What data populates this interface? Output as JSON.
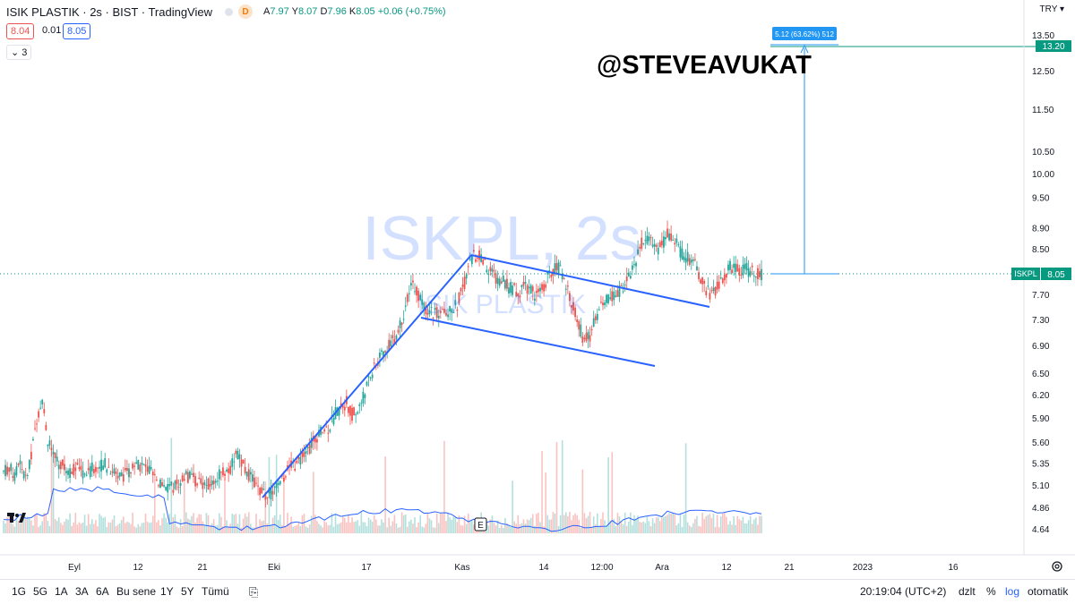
{
  "header": {
    "title": "ISIK PLASTIK · 2s · BIST · TradingView",
    "ohlc": [
      {
        "label": "A",
        "value": "7.97"
      },
      {
        "label": "Y",
        "value": "8.07"
      },
      {
        "label": "D",
        "value": "7.96"
      },
      {
        "label": "K",
        "value": "8.05"
      }
    ],
    "change": "+0.06 (+0.75%)",
    "bid": "8.04",
    "spread": "0.01",
    "ask": "8.05",
    "indicator_toggle": "3",
    "d_badge": "D"
  },
  "currency": "TRY",
  "watermark": {
    "symbol": "ISKPL, 2s",
    "name": "ISIK PLASTIK"
  },
  "annotation": "@STEVEAVUKAT",
  "measure_label": "5.12 (63.62%) 512",
  "target_label": "13.20",
  "last_price": {
    "symbol": "ISKPL",
    "value": "8.05"
  },
  "earnings_marker": "E",
  "price_axis": [
    "13.50",
    "12.50",
    "11.50",
    "10.50",
    "10.00",
    "9.50",
    "8.90",
    "8.50",
    "7.70",
    "7.30",
    "6.90",
    "6.50",
    "6.20",
    "5.90",
    "5.60",
    "5.35",
    "5.10",
    "4.86",
    "4.64"
  ],
  "time_axis": [
    "Eyl",
    "12",
    "21",
    "Eki",
    "17",
    "Kas",
    "14",
    "12:00",
    "Ara",
    "12",
    "21",
    "2023",
    "16"
  ],
  "timeframes": [
    "1G",
    "5G",
    "1A",
    "3A",
    "6A",
    "Bu sene",
    "1Y",
    "5Y",
    "Tümü"
  ],
  "clock": "20:19:04 (UTC+2)",
  "right_controls": [
    "dzlt",
    "%",
    "log",
    "otomatik"
  ],
  "colors": {
    "up": "#26a69a",
    "down": "#ef5350",
    "trend": "#2962ff",
    "target": "#089981",
    "measure": "#2196f3"
  },
  "chart_data": {
    "type": "candlestick",
    "price_range": [
      4.64,
      13.5
    ],
    "scale": "log",
    "close_path": [
      [
        5.25,
        5.3,
        5.2,
        5.35,
        5.15,
        5.4,
        5.9,
        6.15,
        5.6,
        5.45,
        5.35,
        5.3,
        5.25,
        5.3,
        5.25,
        5.2,
        5.28,
        5.3,
        5.35,
        5.3,
        5.25,
        5.2,
        5.22,
        5.25,
        5.3,
        5.32,
        5.28,
        5.2,
        5.15,
        5.1,
        5.05,
        5.1,
        5.15,
        5.2,
        5.18,
        5.15,
        5.12,
        5.1,
        5.15,
        5.2,
        5.25,
        5.3,
        5.5,
        5.35,
        5.25,
        5.15,
        5.05,
        5.0
      ],
      [
        5.0,
        5.05,
        5.15,
        5.25,
        5.3,
        5.35,
        5.4,
        5.5,
        5.6,
        5.7,
        5.75,
        5.8,
        5.95,
        6.05,
        6.1,
        5.95,
        6.0,
        6.15,
        6.4,
        6.55,
        6.7,
        6.85,
        6.95,
        7.05,
        7.3,
        7.6,
        7.9,
        7.7,
        7.5,
        7.45,
        7.4,
        7.35,
        7.45,
        7.4,
        7.55,
        7.8,
        8.1,
        8.4,
        8.35,
        8.25,
        8.1,
        8.0,
        7.95,
        7.85,
        7.8,
        7.75,
        7.8,
        7.85,
        7.7,
        7.75,
        7.9,
        8.1,
        8.2,
        8.05,
        7.8,
        7.5,
        7.2,
        6.95,
        7.05,
        7.3,
        7.5,
        7.6,
        7.65,
        7.7,
        7.85,
        8.0,
        8.2,
        8.5,
        8.75,
        8.6,
        8.5,
        8.55,
        8.8,
        8.7,
        8.5,
        8.4,
        8.3,
        8.2,
        8.0,
        7.8,
        7.7,
        7.8,
        8.0,
        8.15,
        8.2,
        8.1,
        8.15,
        8.1,
        8.05,
        8.05
      ]
    ],
    "volume_avg_line": "visible",
    "drawings": [
      {
        "type": "trendline",
        "label": "uptrend"
      },
      {
        "type": "channel",
        "label": "bull-flag"
      },
      {
        "type": "measure",
        "label": "5.12 (63.62%) 512"
      }
    ]
  }
}
